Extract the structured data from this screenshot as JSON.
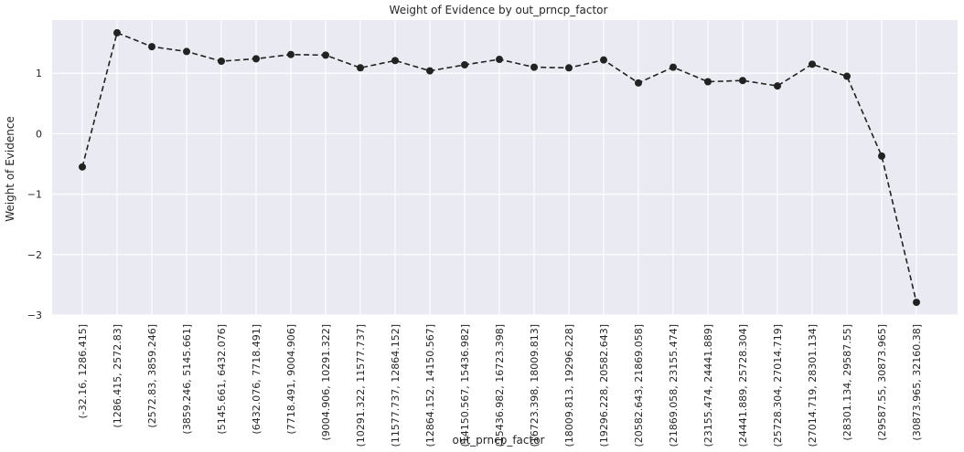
{
  "chart_data": {
    "type": "line",
    "title": "Weight of Evidence by out_prncp_factor",
    "xlabel": "out_prncp_factor",
    "ylabel": "Weight of Evidence",
    "categories": [
      "(-32.16, 1286.415]",
      "(1286.415, 2572.83]",
      "(2572.83, 3859.246]",
      "(3859.246, 5145.661]",
      "(5145.661, 6432.076]",
      "(6432.076, 7718.491]",
      "(7718.491, 9004.906]",
      "(9004.906, 10291.322]",
      "(10291.322, 11577.737]",
      "(11577.737, 12864.152]",
      "(12864.152, 14150.567]",
      "(14150.567, 15436.982]",
      "(15436.982, 16723.398]",
      "(16723.398, 18009.813]",
      "(18009.813, 19296.228]",
      "(19296.228, 20582.643]",
      "(20582.643, 21869.058]",
      "(21869.058, 23155.474]",
      "(23155.474, 24441.889]",
      "(24441.889, 25728.304]",
      "(25728.304, 27014.719]",
      "(27014.719, 28301.134]",
      "(28301.134, 29587.55]",
      "(29587.55, 30873.965]",
      "(30873.965, 32160.38]"
    ],
    "values": [
      -0.55,
      1.67,
      1.44,
      1.36,
      1.2,
      1.24,
      1.31,
      1.3,
      1.09,
      1.21,
      1.04,
      1.14,
      1.23,
      1.1,
      1.09,
      1.22,
      0.84,
      1.1,
      0.86,
      0.88,
      0.79,
      1.15,
      0.95,
      -0.37,
      -2.79
    ],
    "yticks": [
      1,
      0,
      -1,
      -2,
      -3
    ],
    "ytick_labels": [
      "1",
      "0",
      "−1",
      "−2",
      "−3"
    ],
    "ylim": [
      -3.0,
      1.88
    ],
    "grid": true,
    "line_style": "dashed",
    "marker": "circle",
    "colors": {
      "line": "#222222",
      "background": "#eaeaf2",
      "grid": "#ffffff"
    }
  }
}
